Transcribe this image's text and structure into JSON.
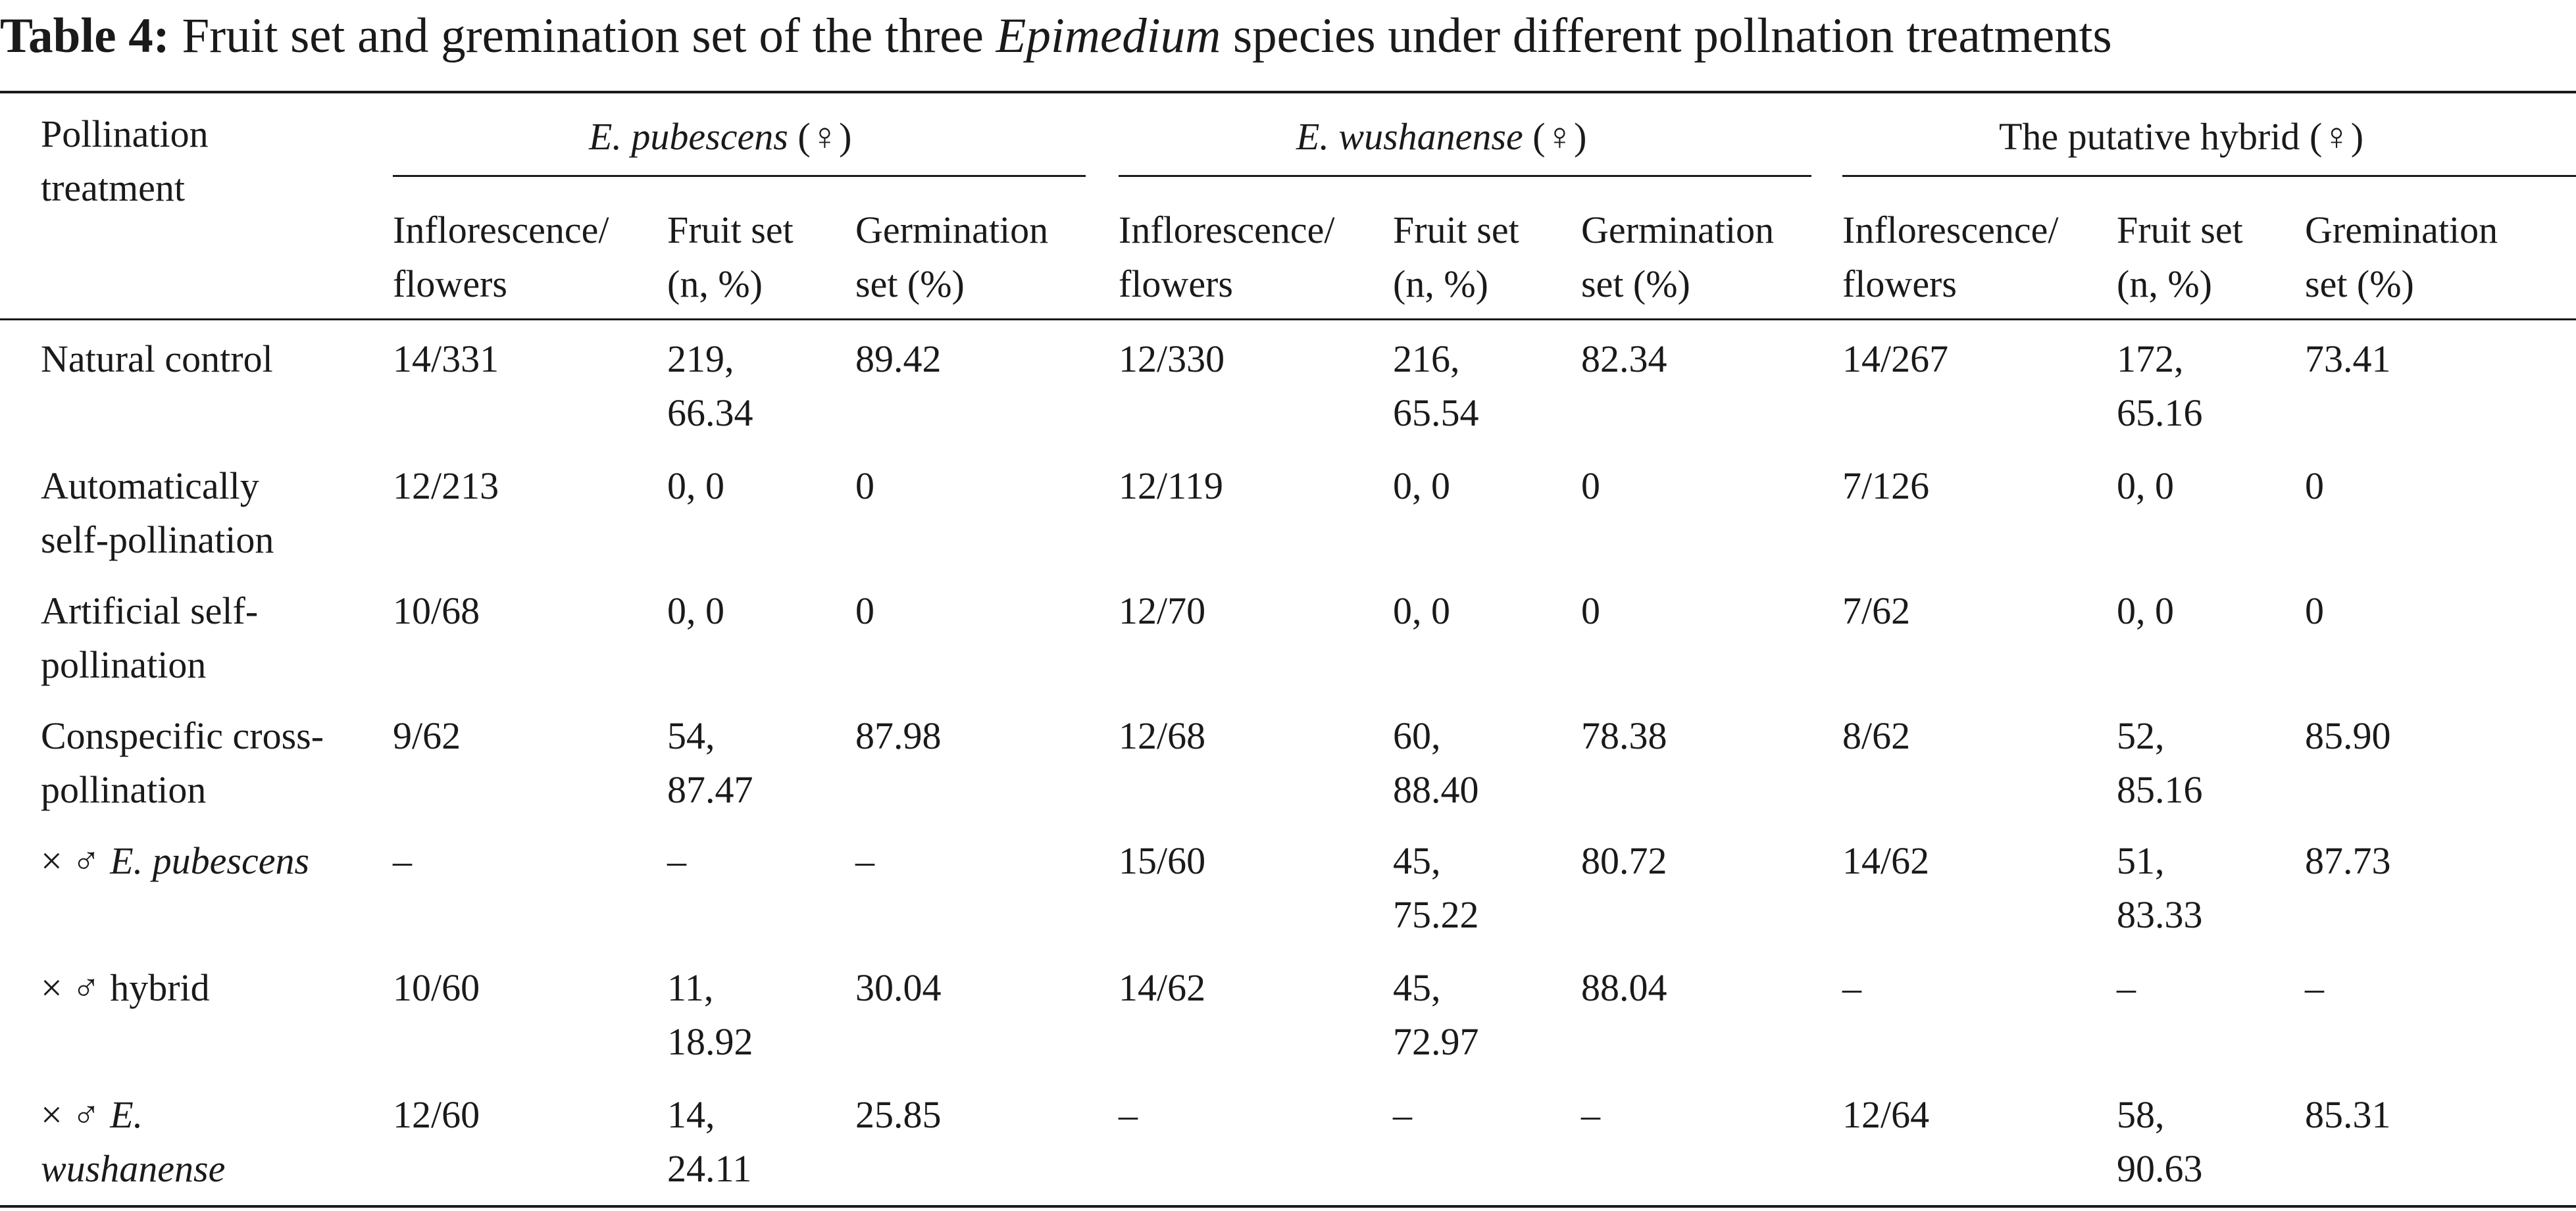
{
  "caption": {
    "label": "Table 4:",
    "text_before": "Fruit set and gremination set of the three ",
    "genus": "Epimedium",
    "text_after": " species under different pollnation treatments"
  },
  "header": {
    "row_label": [
      "Pollination",
      "treatment"
    ],
    "groups": [
      {
        "prefix": "",
        "italic": "E. pubescens",
        "suffix": " (♀)"
      },
      {
        "prefix": "",
        "italic": "E. wushanense",
        "suffix": " (♀)"
      },
      {
        "prefix": "The putative hybrid",
        "italic": "",
        "suffix": " (♀)"
      }
    ],
    "subcolumns": [
      [
        "Inflorescence/",
        "flowers"
      ],
      [
        "Fruit set",
        "(n, %)"
      ],
      [
        "Gremination",
        "set (%)"
      ],
      [
        "Germination",
        "set (%)"
      ]
    ]
  },
  "rows": [
    {
      "label": {
        "text": [
          "Natural control"
        ],
        "italic": false
      },
      "cells": [
        [
          "14/331"
        ],
        [
          "219,",
          "66.34"
        ],
        [
          "89.42"
        ],
        [
          "12/330"
        ],
        [
          "216,",
          "65.54"
        ],
        [
          "82.34"
        ],
        [
          "14/267"
        ],
        [
          "172,",
          "65.16"
        ],
        [
          "73.41"
        ]
      ]
    },
    {
      "label": {
        "text": [
          "Automatically",
          "self-pollination"
        ],
        "italic": false
      },
      "cells": [
        [
          "12/213"
        ],
        [
          "0, 0"
        ],
        [
          "0"
        ],
        [
          "12/119"
        ],
        [
          "0, 0"
        ],
        [
          "0"
        ],
        [
          "7/126"
        ],
        [
          "0, 0"
        ],
        [
          "0"
        ]
      ]
    },
    {
      "label": {
        "text": [
          "Artificial self-",
          "pollination"
        ],
        "italic": false
      },
      "cells": [
        [
          "10/68"
        ],
        [
          "0, 0"
        ],
        [
          "0"
        ],
        [
          "12/70"
        ],
        [
          "0, 0"
        ],
        [
          "0"
        ],
        [
          "7/62"
        ],
        [
          "0, 0"
        ],
        [
          "0"
        ]
      ]
    },
    {
      "label": {
        "text": [
          "Conspecific cross-",
          "pollination"
        ],
        "italic": false
      },
      "cells": [
        [
          "9/62"
        ],
        [
          "54,",
          "87.47"
        ],
        [
          "87.98"
        ],
        [
          "12/68"
        ],
        [
          "60,",
          "88.40"
        ],
        [
          "78.38"
        ],
        [
          "8/62"
        ],
        [
          "52,",
          "85.16"
        ],
        [
          "85.90"
        ]
      ]
    },
    {
      "label": {
        "prefix": "× ♂ ",
        "italic_text": [
          "E. pubescens"
        ]
      },
      "cells": [
        [
          "–"
        ],
        [
          "–"
        ],
        [
          "–"
        ],
        [
          "15/60"
        ],
        [
          "45,",
          "75.22"
        ],
        [
          "80.72"
        ],
        [
          "14/62"
        ],
        [
          "51,",
          "83.33"
        ],
        [
          "87.73"
        ]
      ]
    },
    {
      "label": {
        "prefix": "× ♂ ",
        "plain_text": "hybrid"
      },
      "cells": [
        [
          "10/60"
        ],
        [
          "11,",
          "18.92"
        ],
        [
          "30.04"
        ],
        [
          "14/62"
        ],
        [
          "45,",
          "72.97"
        ],
        [
          "88.04"
        ],
        [
          "–"
        ],
        [
          "–"
        ],
        [
          "–"
        ]
      ]
    },
    {
      "label": {
        "prefix": "× ♂ ",
        "italic_text": [
          "E.",
          "wushanense"
        ]
      },
      "cells": [
        [
          "12/60"
        ],
        [
          "14,",
          "24.11"
        ],
        [
          "25.85"
        ],
        [
          "–"
        ],
        [
          "–"
        ],
        [
          "–"
        ],
        [
          "12/64"
        ],
        [
          "58,",
          "90.63"
        ],
        [
          "85.31"
        ]
      ]
    }
  ]
}
